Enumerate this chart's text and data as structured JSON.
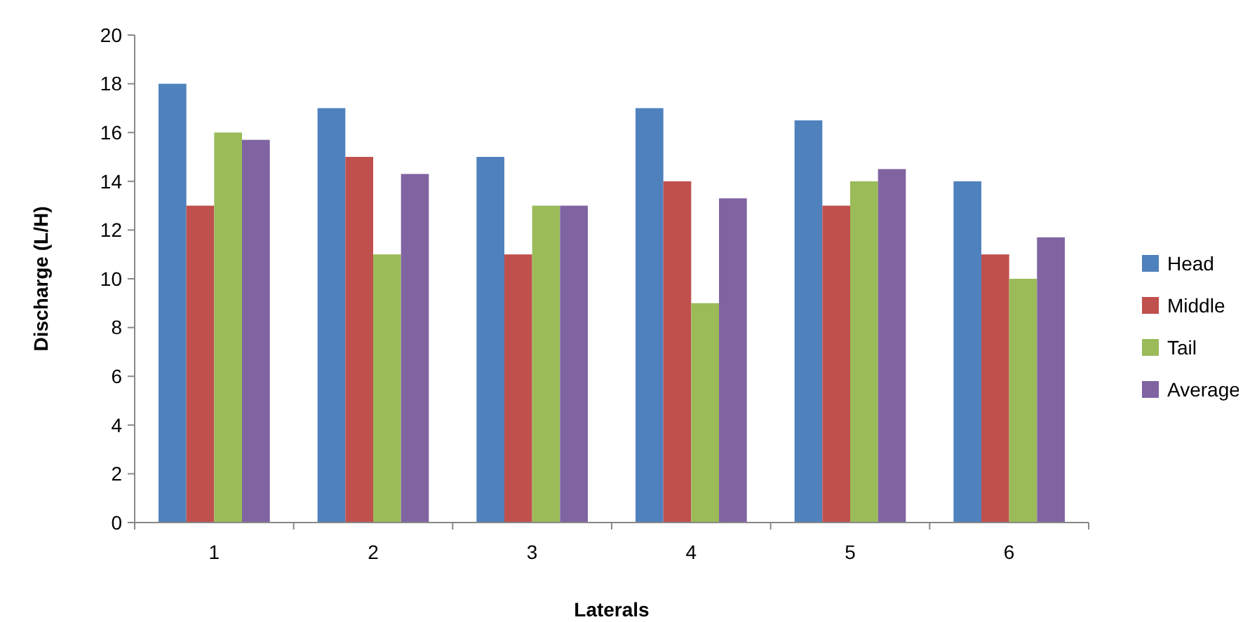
{
  "chart_data": {
    "type": "bar",
    "xlabel": "Laterals",
    "ylabel": "Discharge (L/H)",
    "categories": [
      "1",
      "2",
      "3",
      "4",
      "5",
      "6"
    ],
    "series": [
      {
        "name": "Head",
        "color": "#4f81bd",
        "values": [
          18,
          17,
          15,
          17,
          16.5,
          14
        ]
      },
      {
        "name": "Middle",
        "color": "#c0504d",
        "values": [
          13,
          15,
          11,
          14,
          13,
          11
        ]
      },
      {
        "name": "Tail",
        "color": "#9bbb59",
        "values": [
          16,
          11,
          13,
          9,
          14,
          10
        ]
      },
      {
        "name": "Average",
        "color": "#8064a2",
        "values": [
          15.7,
          14.3,
          13,
          13.3,
          14.5,
          11.7
        ]
      }
    ],
    "ylim": [
      0,
      20
    ],
    "yticks": [
      0,
      2,
      4,
      6,
      8,
      10,
      12,
      14,
      16,
      18,
      20
    ],
    "grid": false,
    "legend": "right"
  }
}
